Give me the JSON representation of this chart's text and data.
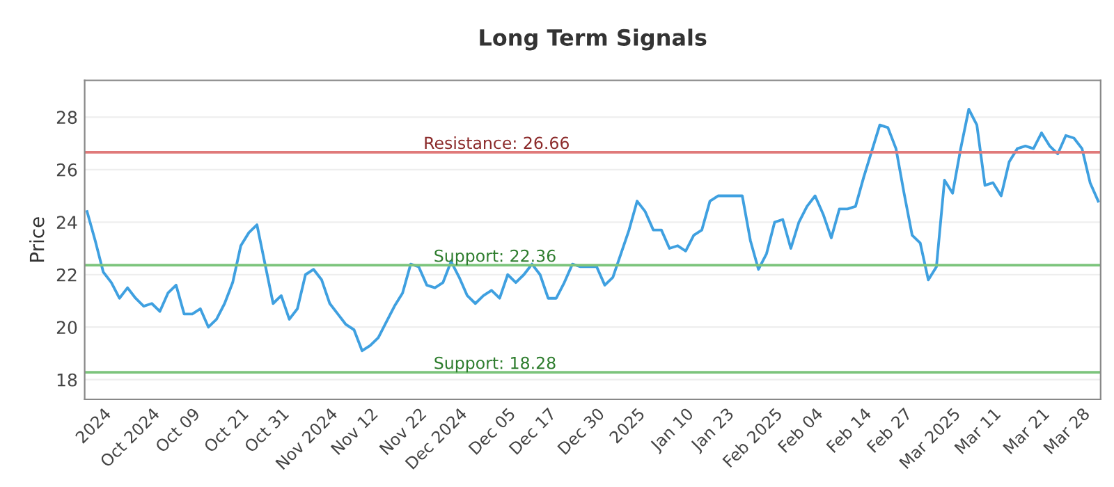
{
  "chart_data": {
    "type": "line",
    "title": "Long Term Signals",
    "ylabel": "Price",
    "categories": [
      null,
      null,
      "2024",
      null,
      null,
      null,
      null,
      null,
      "Oct 2024",
      null,
      null,
      null,
      null,
      "Oct 09",
      null,
      null,
      null,
      null,
      null,
      "Oct 21",
      null,
      null,
      null,
      null,
      "Oct 31",
      null,
      null,
      null,
      null,
      null,
      "Nov 2024",
      null,
      null,
      null,
      null,
      "Nov 12",
      null,
      null,
      null,
      null,
      null,
      "Nov 22",
      null,
      null,
      null,
      null,
      "Dec 2024",
      null,
      null,
      null,
      null,
      null,
      "Dec 05",
      null,
      null,
      null,
      null,
      "Dec 17",
      null,
      null,
      null,
      null,
      null,
      "Dec 30",
      null,
      null,
      null,
      null,
      "2025",
      null,
      null,
      null,
      null,
      null,
      "Jan 10",
      null,
      null,
      null,
      null,
      "Jan 23",
      null,
      null,
      null,
      null,
      null,
      "Feb 2025",
      null,
      null,
      null,
      null,
      "Feb 04",
      null,
      null,
      null,
      null,
      null,
      "Feb 14",
      null,
      null,
      null,
      null,
      "Feb 27",
      null,
      null,
      null,
      null,
      null,
      "Mar 2025",
      null,
      null,
      null,
      null,
      "Mar 11",
      null,
      null,
      null,
      null,
      null,
      "Mar 21",
      null,
      null,
      null,
      null,
      "Mar 28",
      null,
      null
    ],
    "series": [
      {
        "color": "#3fa0e0",
        "values": [
          24.4,
          23.3,
          22.1,
          21.7,
          21.1,
          21.5,
          21.1,
          20.8,
          20.9,
          20.6,
          21.3,
          21.6,
          20.5,
          20.5,
          20.7,
          20.0,
          20.3,
          20.9,
          21.7,
          23.1,
          23.6,
          23.9,
          22.4,
          20.9,
          21.2,
          20.3,
          20.7,
          22.0,
          22.2,
          21.8,
          20.9,
          20.5,
          20.1,
          19.9,
          19.1,
          19.3,
          19.6,
          20.2,
          20.8,
          21.3,
          22.4,
          22.3,
          21.6,
          21.5,
          21.7,
          22.5,
          21.9,
          21.2,
          20.9,
          21.2,
          21.4,
          21.1,
          22.0,
          21.7,
          22.0,
          22.4,
          22.0,
          21.1,
          21.1,
          21.7,
          22.4,
          22.3,
          22.3,
          22.3,
          21.6,
          21.9,
          22.8,
          23.7,
          24.8,
          24.4,
          23.7,
          23.7,
          23.0,
          23.1,
          22.9,
          23.5,
          23.7,
          24.8,
          25.0,
          25.0,
          25.0,
          25.0,
          23.3,
          22.2,
          22.8,
          24.0,
          24.1,
          23.0,
          24.0,
          24.6,
          25.0,
          24.3,
          23.4,
          24.5,
          24.5,
          24.6,
          25.7,
          26.7,
          27.7,
          27.6,
          26.8,
          25.1,
          23.5,
          23.2,
          21.8,
          22.3,
          25.6,
          25.1,
          26.8,
          28.3,
          27.7,
          25.4,
          25.5,
          25.0,
          26.3,
          26.8,
          26.9,
          26.8,
          27.4,
          26.9,
          26.6,
          27.3,
          27.2,
          26.8,
          25.5,
          24.8
        ]
      }
    ],
    "ylim": [
      17.25,
      29.4
    ],
    "yticks": [
      18,
      20,
      22,
      24,
      26,
      28
    ],
    "grid": "y",
    "ref_lines": [
      {
        "axis": "y",
        "value": 26.66,
        "label": "Resistance: 26.66",
        "color": "#e07a7a"
      },
      {
        "axis": "y",
        "value": 22.36,
        "label": "Support: 22.36",
        "color": "#7cc47c"
      },
      {
        "axis": "y",
        "value": 18.28,
        "label": "Support: 18.28",
        "color": "#7cc47c"
      }
    ]
  }
}
